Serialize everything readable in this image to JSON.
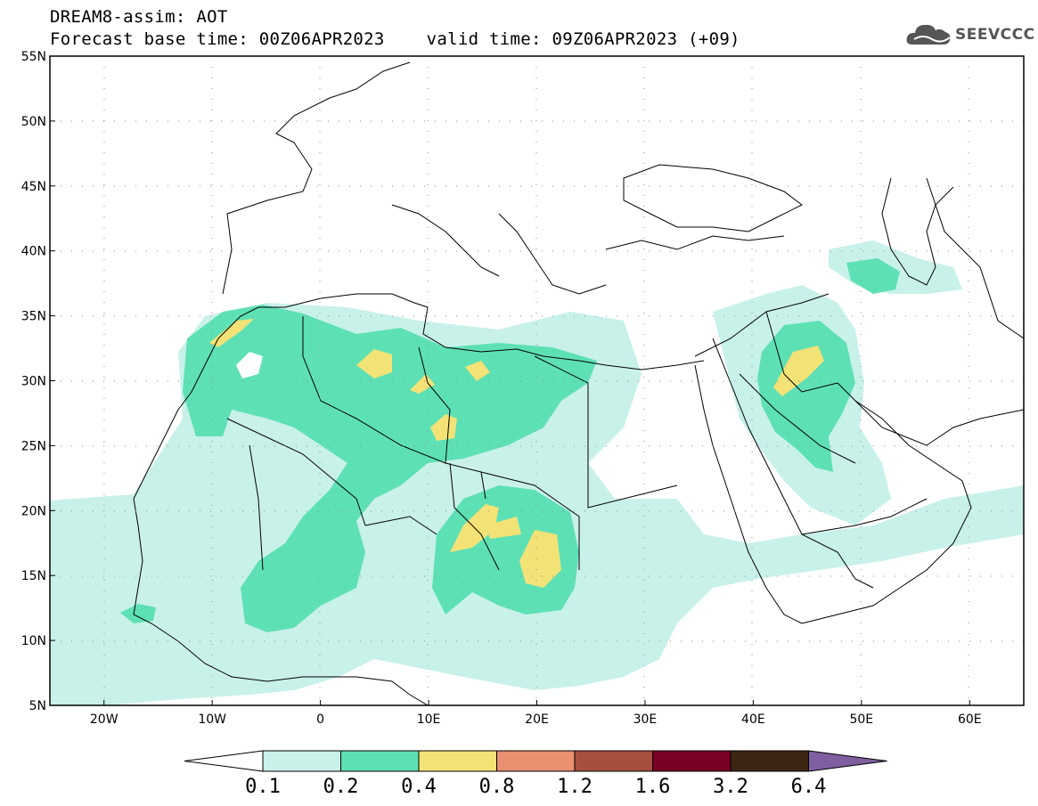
{
  "title": {
    "line1": "DREAM8-assim: AOT",
    "base_time": "Forecast base time: 00Z06APR2023",
    "valid_time": "valid time: 09Z06APR2023 (+09)"
  },
  "logo": {
    "text": "SEEVCCC",
    "icon": "cloud-logo-icon"
  },
  "map": {
    "lon_range": [
      -25,
      65
    ],
    "lat_range": [
      5,
      55
    ],
    "lat_ticks": [
      {
        "value": 55,
        "label": "55N"
      },
      {
        "value": 50,
        "label": "50N"
      },
      {
        "value": 45,
        "label": "45N"
      },
      {
        "value": 40,
        "label": "40N"
      },
      {
        "value": 35,
        "label": "35N"
      },
      {
        "value": 30,
        "label": "30N"
      },
      {
        "value": 25,
        "label": "25N"
      },
      {
        "value": 20,
        "label": "20N"
      },
      {
        "value": 15,
        "label": "15N"
      },
      {
        "value": 10,
        "label": "10N"
      },
      {
        "value": 5,
        "label": "5N"
      }
    ],
    "lon_ticks": [
      {
        "value": -20,
        "label": "20W"
      },
      {
        "value": -10,
        "label": "10W"
      },
      {
        "value": 0,
        "label": "0"
      },
      {
        "value": 10,
        "label": "10E"
      },
      {
        "value": 20,
        "label": "20E"
      },
      {
        "value": 30,
        "label": "30E"
      },
      {
        "value": 40,
        "label": "40E"
      },
      {
        "value": 50,
        "label": "50E"
      },
      {
        "value": 60,
        "label": "60E"
      }
    ],
    "grid": "dotted"
  },
  "colorbar": {
    "levels": [
      "0.1",
      "0.2",
      "0.4",
      "0.8",
      "1.2",
      "1.6",
      "3.2",
      "6.4"
    ],
    "colors": [
      "#ffffff",
      "#c8f1ea",
      "#5ee0b5",
      "#f3e276",
      "#e89070",
      "#a64f3e",
      "#7a0024",
      "#3b2614",
      "#7f5fa0"
    ]
  },
  "colors": {
    "aot_0_1": "#c8f1ea",
    "aot_0_2": "#5ee0b5",
    "aot_0_4": "#f3e276",
    "borders": "#000000"
  }
}
